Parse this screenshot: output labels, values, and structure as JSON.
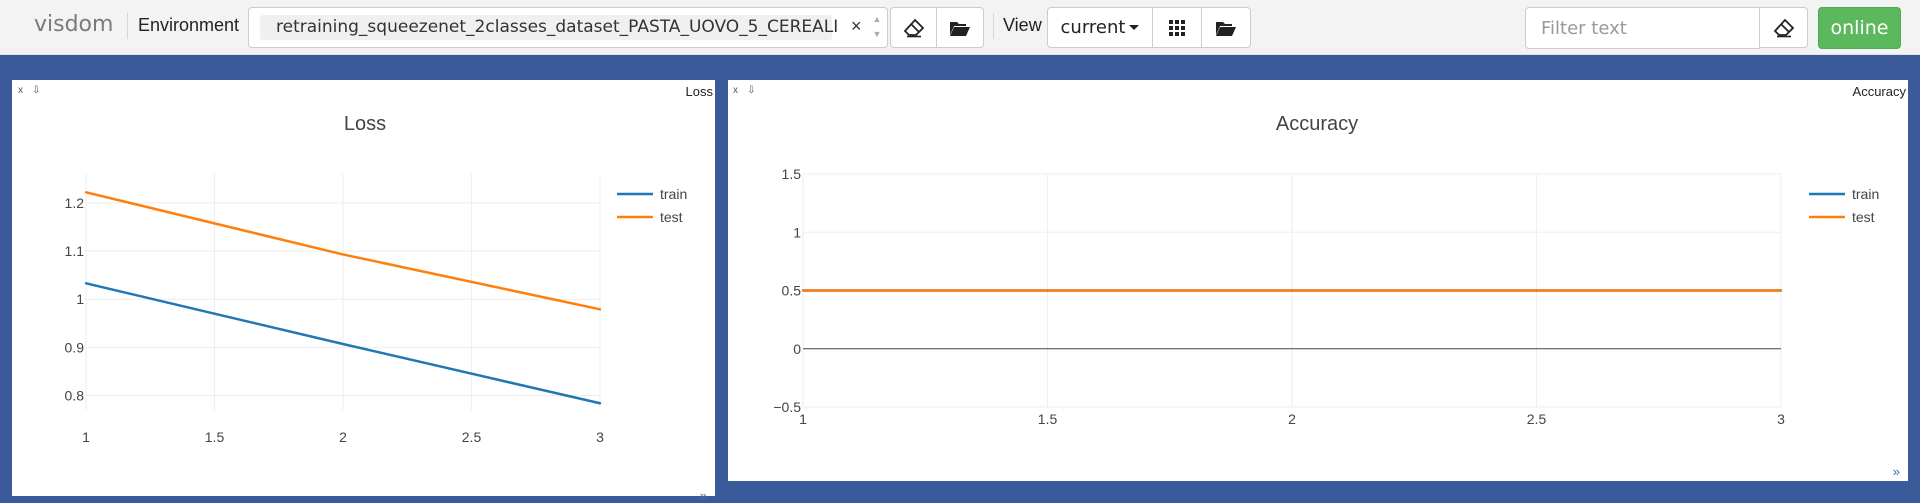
{
  "navbar": {
    "brand": "visdom",
    "environment_label": "Environment",
    "environment_value": "retraining_squeezenet_2classes_dataset_PASTA_UOVO_5_CEREALI",
    "environment_clear": "×",
    "view_label": "View",
    "view_value": "current",
    "filter_placeholder": "Filter text",
    "status_button": "online",
    "icons": [
      "eraser-icon",
      "folder-open-icon",
      "grid-icon",
      "folder-open-icon",
      "eraser-icon"
    ],
    "status_color": "#5cb85c"
  },
  "panes": [
    {
      "window_title": "Loss",
      "close": "x",
      "download": "⇩",
      "resize": "»"
    },
    {
      "window_title": "Accuracy",
      "close": "x",
      "download": "⇩",
      "resize": "»"
    }
  ],
  "chart_data": [
    {
      "type": "line",
      "title": "Loss",
      "xlabel": "",
      "ylabel": "",
      "x": [
        1,
        2,
        3
      ],
      "series": [
        {
          "name": "train",
          "color": "#1f77b4",
          "values": [
            1.033,
            0.907,
            0.784
          ]
        },
        {
          "name": "test",
          "color": "#ff7f0e",
          "values": [
            1.222,
            1.093,
            0.979
          ]
        }
      ],
      "xlim": [
        1,
        3
      ],
      "ylim": [
        0.77,
        1.26
      ],
      "xticks": [
        1,
        1.5,
        2,
        2.5,
        3
      ],
      "yticks": [
        0.8,
        0.9,
        1,
        1.1,
        1.2
      ],
      "xtick_labels": [
        "1",
        "1.5",
        "2",
        "2.5",
        "3"
      ],
      "ytick_labels": [
        "0.8",
        "0.9",
        "1",
        "1.1",
        "1.2"
      ],
      "grid": true,
      "legend": "top-right"
    },
    {
      "type": "line",
      "title": "Accuracy",
      "xlabel": "",
      "ylabel": "",
      "x": [
        1,
        2,
        3
      ],
      "series": [
        {
          "name": "train",
          "color": "#1f77b4",
          "values": [
            0.5,
            0.5,
            0.5
          ]
        },
        {
          "name": "test",
          "color": "#ff7f0e",
          "values": [
            0.5,
            0.5,
            0.5
          ]
        }
      ],
      "xlim": [
        1,
        3
      ],
      "ylim": [
        -0.5,
        1.5
      ],
      "xticks": [
        1,
        1.5,
        2,
        2.5,
        3
      ],
      "yticks": [
        -0.5,
        0,
        0.5,
        1,
        1.5
      ],
      "xtick_labels": [
        "1",
        "1.5",
        "2",
        "2.5",
        "3"
      ],
      "ytick_labels": [
        "−0.5",
        "0",
        "0.5",
        "1",
        "1.5"
      ],
      "grid": true,
      "zero_line": true,
      "legend": "top-right"
    }
  ]
}
